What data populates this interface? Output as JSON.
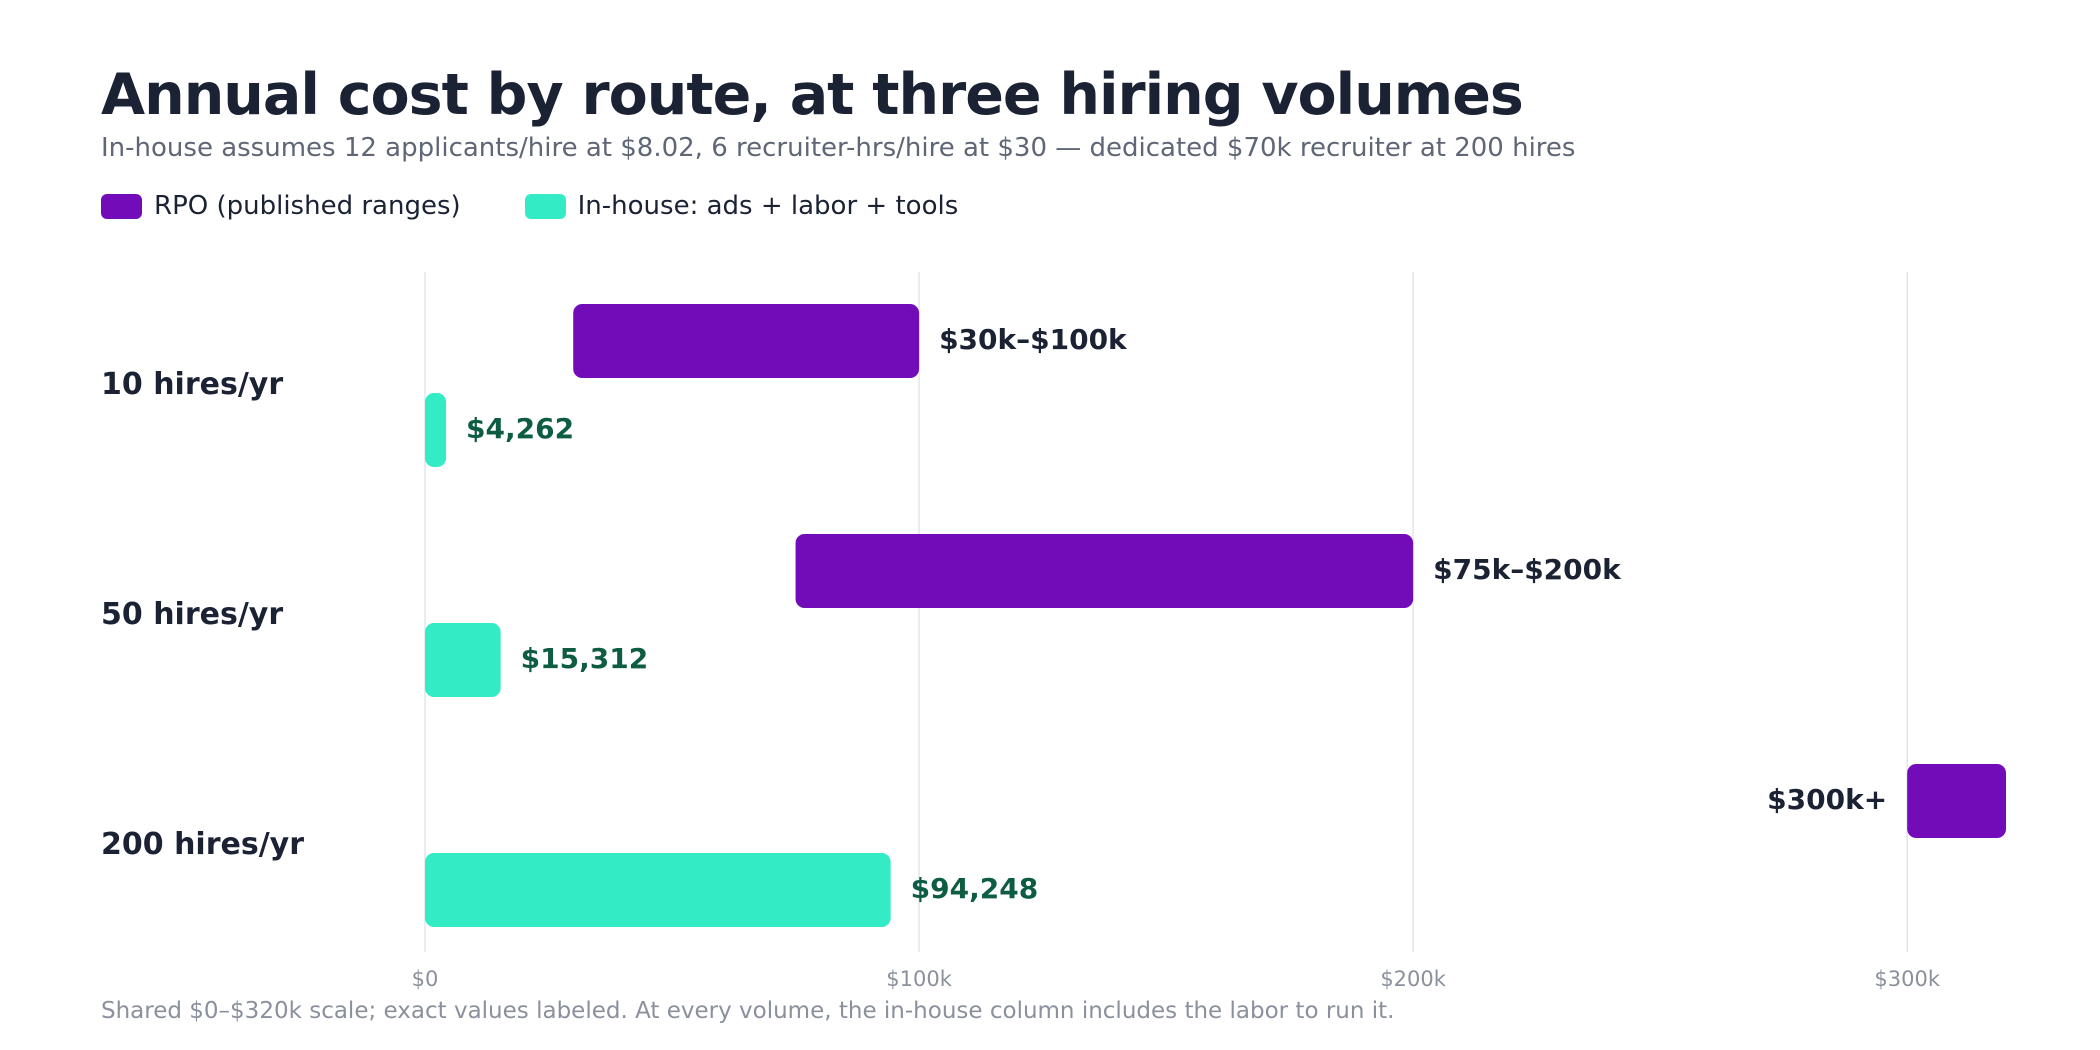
{
  "title": "Annual cost by route, at three hiring volumes",
  "subtitle": "In-house assumes 12 applicants/hire at $8.02, 6 recruiter-hrs/hire at $30 — dedicated $70k recruiter at 200 hires",
  "footnote": "Shared $0–$320k scale; exact values labeled. At every volume, the in-house column includes the labor to run it.",
  "legend": [
    {
      "label": "RPO (published ranges)",
      "color": "#720cb9"
    },
    {
      "label": "In-house: ads + labor + tools",
      "color": "#33ebc4"
    }
  ],
  "chart_data": {
    "type": "bar",
    "orientation": "horizontal",
    "categories": [
      "10 hires/yr",
      "50 hires/yr",
      "200 hires/yr"
    ],
    "xlim": [
      0,
      320000
    ],
    "xticks": [
      0,
      100000,
      200000,
      300000
    ],
    "xtick_labels": [
      "$0",
      "$100k",
      "$200k",
      "$300k"
    ],
    "grid": true,
    "legend_position": "top-left",
    "series": [
      {
        "name": "RPO (published ranges)",
        "color": "#720cb9",
        "label_color": "#1a2233",
        "ranges": [
          [
            30000,
            100000
          ],
          [
            75000,
            200000
          ],
          [
            300000,
            320000
          ]
        ],
        "labels": [
          "$30k–$100k",
          "$75k–$200k",
          "$300k+"
        ]
      },
      {
        "name": "In-house: ads + labor + tools",
        "color": "#33ebc4",
        "label_color": "#0d5c43",
        "values": [
          4262,
          15312,
          94248
        ],
        "labels": [
          "$4,262",
          "$15,312",
          "$94,248"
        ]
      }
    ]
  }
}
